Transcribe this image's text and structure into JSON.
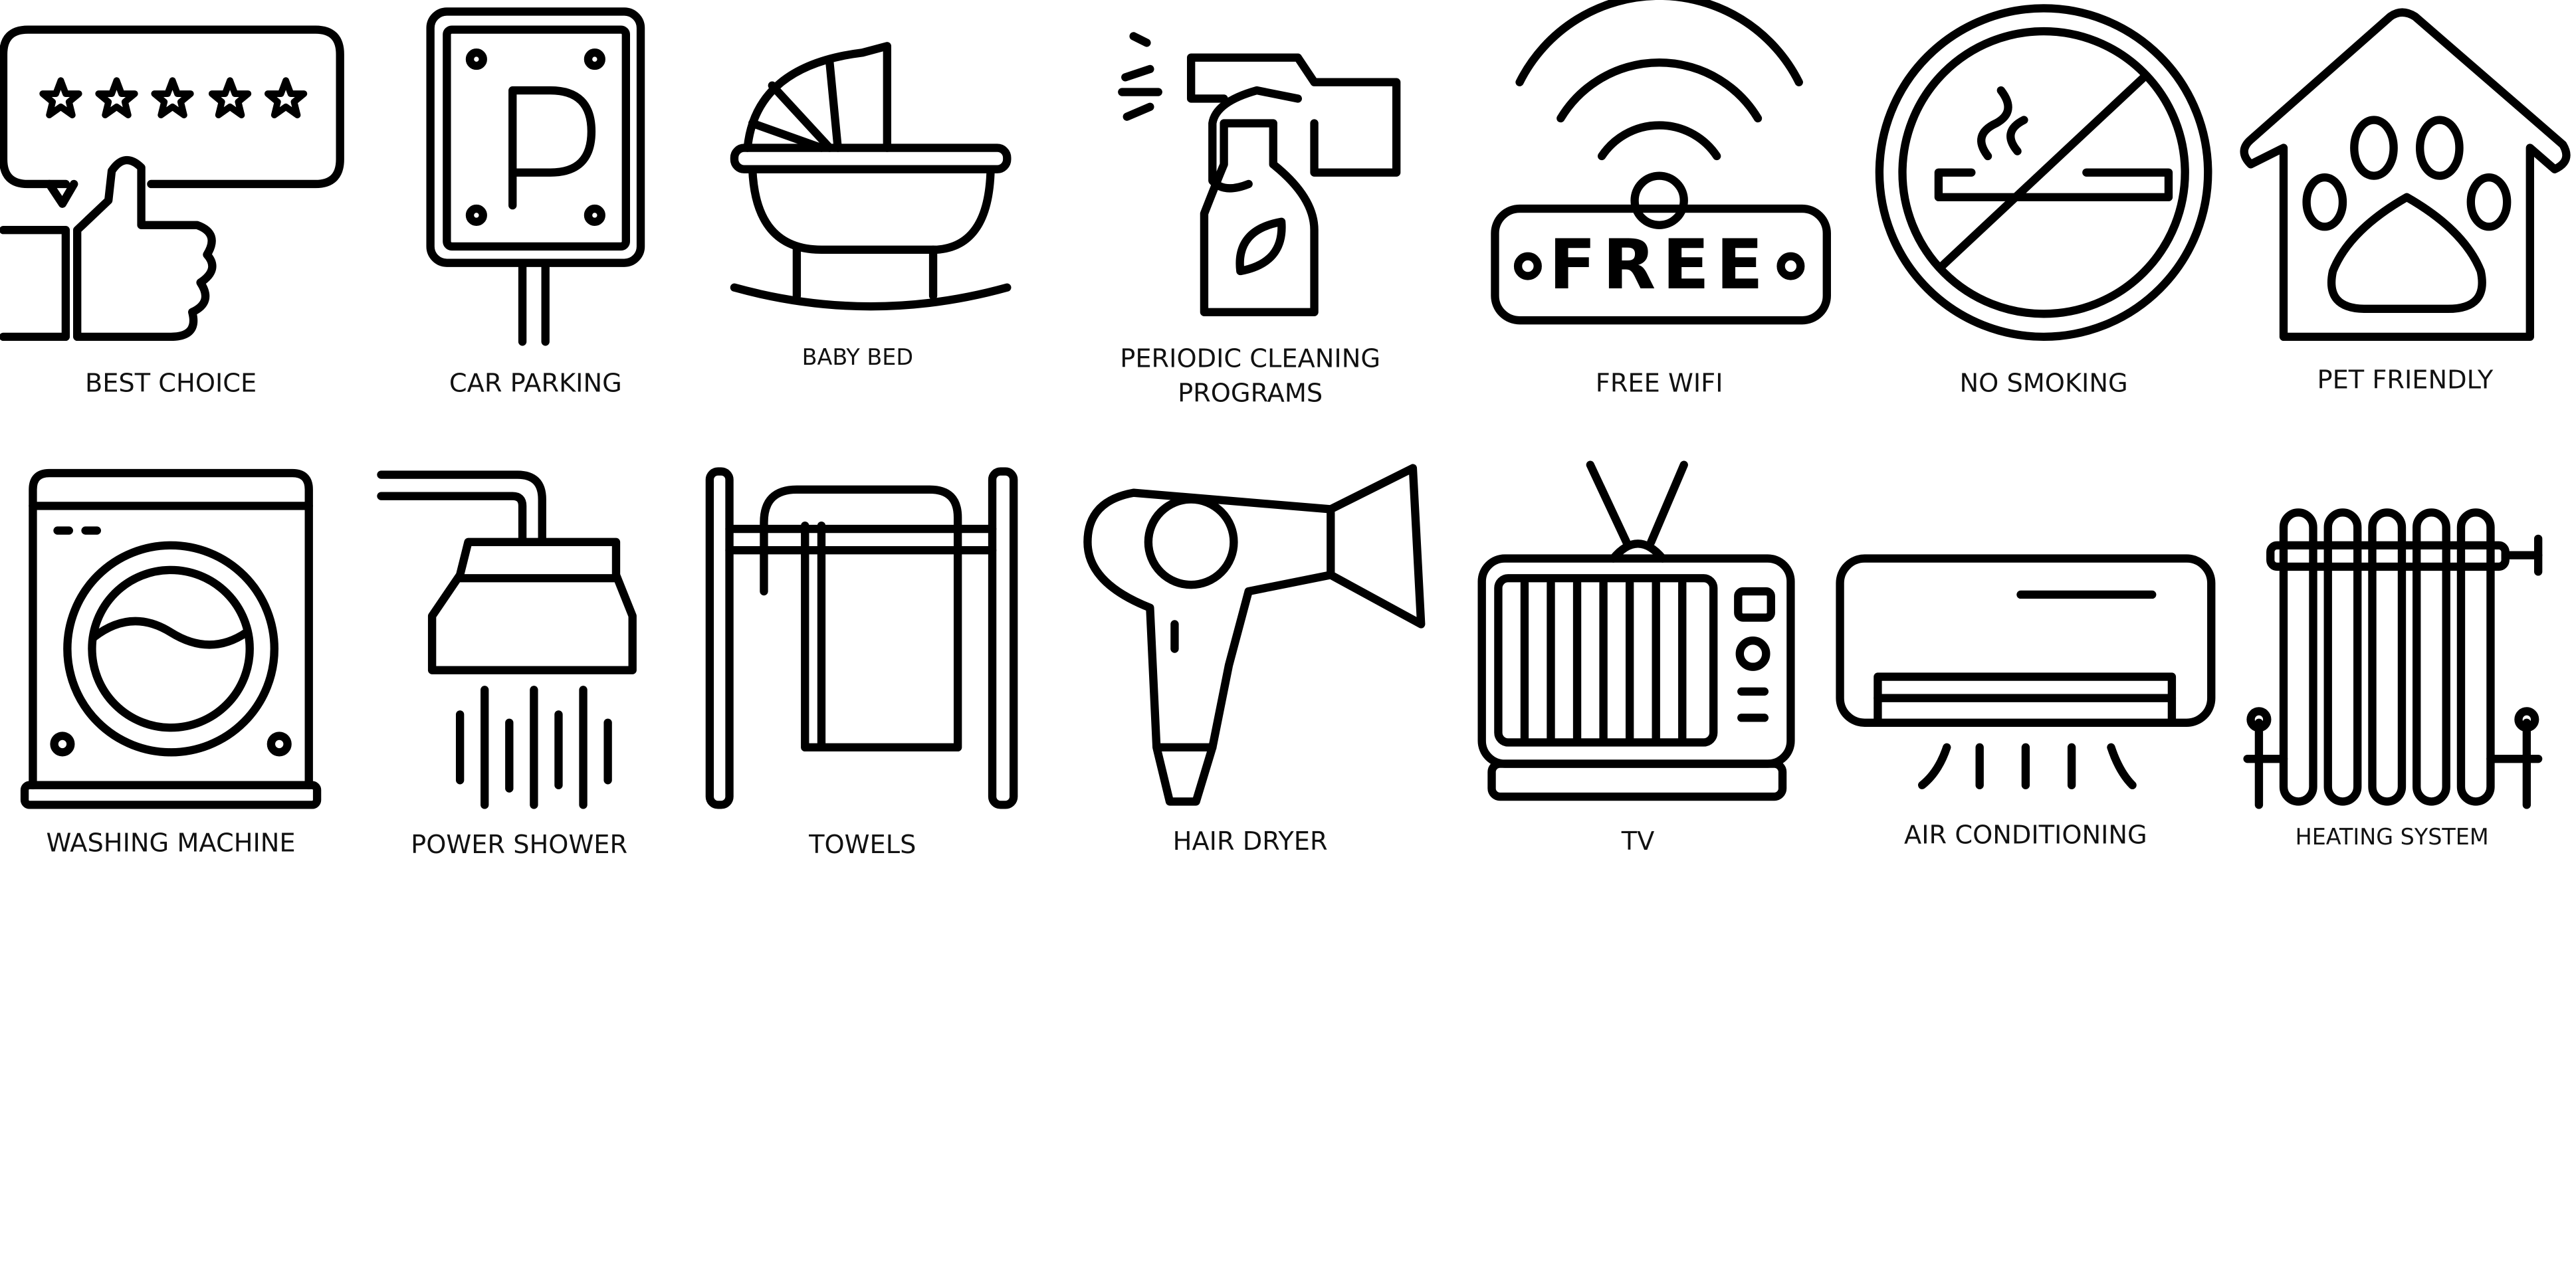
{
  "icons": [
    {
      "lines": [
        "BEST CHOICE"
      ]
    },
    {
      "lines": [
        "CAR PARKING"
      ]
    },
    {
      "lines": [
        "BABY BED"
      ]
    },
    {
      "lines": [
        "PERIODIC CLEANING",
        "PROGRAMS"
      ]
    },
    {
      "lines": [
        "FREE WIFI"
      ],
      "badge_text": "FREE"
    },
    {
      "lines": [
        "NO SMOKING"
      ]
    },
    {
      "lines": [
        "PET FRIENDLY"
      ]
    },
    {
      "lines": [
        "WASHING MACHINE"
      ]
    },
    {
      "lines": [
        "POWER SHOWER"
      ]
    },
    {
      "lines": [
        "TOWELS"
      ]
    },
    {
      "lines": [
        "HAIR DRYER"
      ]
    },
    {
      "lines": [
        "TV"
      ]
    },
    {
      "lines": [
        "AIR CONDITIONING"
      ]
    },
    {
      "lines": [
        "HEATING SYSTEM"
      ]
    }
  ]
}
